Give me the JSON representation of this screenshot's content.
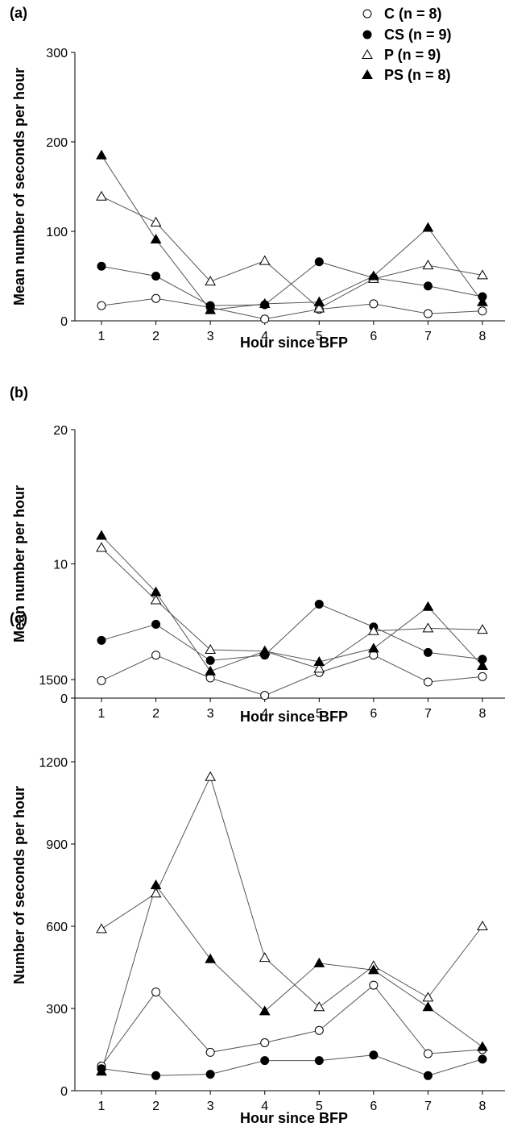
{
  "chart_data": [
    {
      "type": "line",
      "panel_label": "(a)",
      "xlabel": "Hour since BFP",
      "ylabel": "Mean number of seconds per hour",
      "x": [
        1,
        2,
        3,
        4,
        5,
        6,
        7,
        8
      ],
      "xlim": [
        0.5,
        8.5
      ],
      "ylim": [
        0,
        300
      ],
      "yticks": [
        0,
        100,
        200,
        300
      ],
      "series": [
        {
          "name": "C (n = 8)",
          "marker": "circle-open",
          "values": [
            17,
            25,
            15,
            2,
            13,
            19,
            8,
            11
          ]
        },
        {
          "name": "CS (n = 9)",
          "marker": "circle-filled",
          "values": [
            61,
            50,
            17,
            18,
            66,
            48,
            39,
            27
          ]
        },
        {
          "name": "P (n = 9)",
          "marker": "triangle-open",
          "values": [
            139,
            110,
            44,
            67,
            14,
            47,
            62,
            51
          ]
        },
        {
          "name": "PS (n = 8)",
          "marker": "triangle-filled",
          "values": [
            185,
            91,
            12,
            19,
            21,
            50,
            104,
            21
          ]
        }
      ],
      "legend": "top-right"
    },
    {
      "type": "line",
      "panel_label": "(b)",
      "xlabel": "Hour since BFP",
      "ylabel": "Mean number per hour",
      "x": [
        1,
        2,
        3,
        4,
        5,
        6,
        7,
        8
      ],
      "xlim": [
        0.5,
        8.5
      ],
      "ylim": [
        0,
        20
      ],
      "yticks": [
        0,
        10,
        20
      ],
      "series": [
        {
          "name": "C (n = 8)",
          "marker": "circle-open",
          "values": [
            1.3,
            3.2,
            1.5,
            0.2,
            1.9,
            3.2,
            1.2,
            1.6
          ]
        },
        {
          "name": "CS (n = 9)",
          "marker": "circle-filled",
          "values": [
            4.3,
            5.5,
            2.8,
            3.2,
            7.0,
            5.3,
            3.4,
            2.9
          ]
        },
        {
          "name": "P (n = 9)",
          "marker": "triangle-open",
          "values": [
            11.2,
            7.3,
            3.6,
            3.5,
            2.2,
            5.0,
            5.2,
            5.1
          ]
        },
        {
          "name": "PS (n = 8)",
          "marker": "triangle-filled",
          "values": [
            12.1,
            7.9,
            2.0,
            3.5,
            2.7,
            3.7,
            6.8,
            2.4
          ]
        }
      ]
    },
    {
      "type": "line",
      "panel_label": "(c)",
      "xlabel": "Hour since BFP",
      "ylabel": "Number of seconds per hour",
      "x": [
        1,
        2,
        3,
        4,
        5,
        6,
        7,
        8
      ],
      "xlim": [
        0.5,
        8.5
      ],
      "ylim": [
        0,
        1500
      ],
      "yticks": [
        0,
        300,
        600,
        900,
        1200,
        1500
      ],
      "series": [
        {
          "name": "C (n = 8)",
          "marker": "circle-open",
          "values": [
            90,
            360,
            140,
            175,
            220,
            385,
            135,
            150
          ]
        },
        {
          "name": "CS (n = 9)",
          "marker": "circle-filled",
          "values": [
            80,
            55,
            60,
            110,
            110,
            130,
            55,
            115
          ]
        },
        {
          "name": "P (n = 9)",
          "marker": "triangle-open",
          "values": [
            590,
            720,
            1145,
            485,
            305,
            455,
            340,
            600
          ]
        },
        {
          "name": "PS (n = 8)",
          "marker": "triangle-filled",
          "values": [
            70,
            750,
            480,
            290,
            465,
            440,
            305,
            160
          ]
        }
      ]
    }
  ]
}
